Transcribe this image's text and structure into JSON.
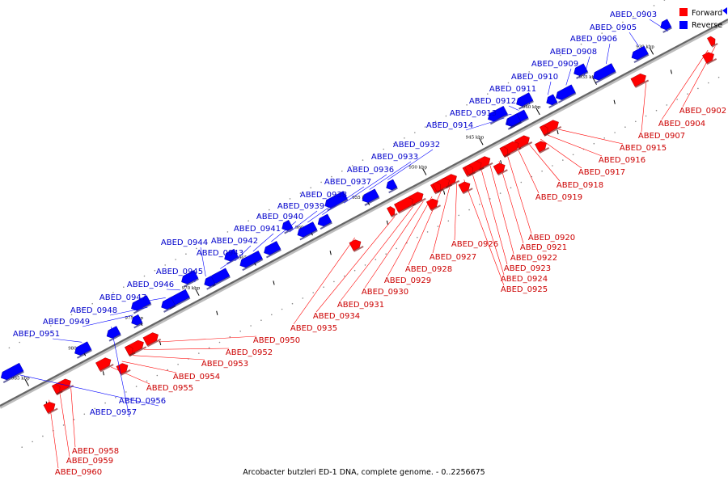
{
  "caption": "Arcobacter butzleri ED-1 DNA, complete genome. - 0..2256675",
  "legend": [
    {
      "label": "Forward",
      "color": "#ff0000"
    },
    {
      "label": "Reverse",
      "color": "#0000ff"
    }
  ],
  "colors": {
    "forward": "#ff0000",
    "reverse": "#0000ff",
    "forward_label": "#cc0000",
    "reverse_label": "#0000cc"
  },
  "ticks": [
    "930 kbp",
    "935 kbp",
    "940 kbp",
    "945 kbp",
    "950 kbp",
    "955 kbp",
    "960 kbp",
    "965 kbp",
    "970 kbp",
    "975 kbp",
    "980 kbp",
    "985 kbp"
  ],
  "forward_genes": [
    "ABED_0902",
    "ABED_0904",
    "ABED_0907",
    "ABED_0915",
    "ABED_0916",
    "ABED_0917",
    "ABED_0918",
    "ABED_0919",
    "ABED_0920",
    "ABED_0921",
    "ABED_0922",
    "ABED_0923",
    "ABED_0924",
    "ABED_0925",
    "ABED_0926",
    "ABED_0927",
    "ABED_0928",
    "ABED_0929",
    "ABED_0930",
    "ABED_0931",
    "ABED_0934",
    "ABED_0935",
    "ABED_0950",
    "ABED_0952",
    "ABED_0953",
    "ABED_0954",
    "ABED_0955",
    "ABED_0958",
    "ABED_0959",
    "ABED_0960"
  ],
  "reverse_genes": [
    "ABED_0903",
    "ABED_0905",
    "ABED_0906",
    "ABED_0908",
    "ABED_0909",
    "ABED_0910",
    "ABED_0911",
    "ABED_0912",
    "ABED_0913",
    "ABED_0914",
    "ABED_0932",
    "ABED_0933",
    "ABED_0936",
    "ABED_0937",
    "ABED_0938",
    "ABED_0939",
    "ABED_0940",
    "ABED_0941",
    "ABED_0942",
    "ABED_0943",
    "ABED_0944",
    "ABED_0945",
    "ABED_0946",
    "ABED_0947",
    "ABED_0948",
    "ABED_0949",
    "ABED_0951",
    "ABED_0956",
    "ABED_0957"
  ]
}
